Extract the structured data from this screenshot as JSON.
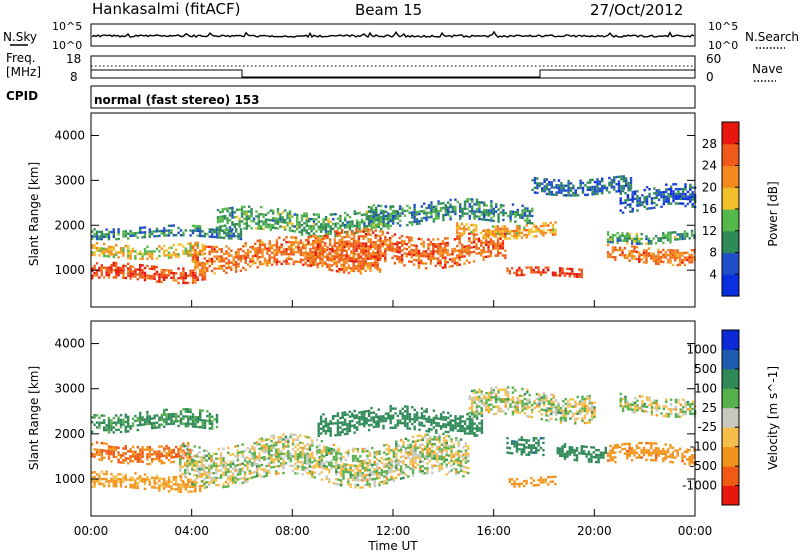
{
  "header": {
    "station": "Hankasalmi (fitACF)",
    "beam": "Beam 15",
    "date": "27/Oct/2012"
  },
  "panels": {
    "nsky": {
      "left_label": "N.Sky",
      "left_ticks": [
        "10^5",
        "10^0"
      ],
      "right_ticks": [
        "10^5",
        "10^0"
      ],
      "right_label": "N.Search"
    },
    "freq": {
      "left_label_1": "Freq.",
      "left_label_2": "[MHz]",
      "left_ticks": [
        "18",
        "8"
      ],
      "right_ticks": [
        "60",
        "0"
      ],
      "right_label": "Nave"
    },
    "cpid": {
      "label": "CPID",
      "text": "normal (fast stereo) 153"
    }
  },
  "x_axis": {
    "label": "Time UT",
    "ticks": [
      "00:00",
      "04:00",
      "08:00",
      "12:00",
      "16:00",
      "20:00",
      "00:00"
    ]
  },
  "colors": {
    "power": [
      "#0a2ee0",
      "#1f4ec8",
      "#2e8b57",
      "#55b84a",
      "#f2c02a",
      "#f28a1e",
      "#ef5a18",
      "#e8170e"
    ],
    "velocity": [
      "#e8170e",
      "#f05a14",
      "#f2931c",
      "#f5bd4a",
      "#c8c8c0",
      "#58b04c",
      "#2f8a58",
      "#1f5cb0",
      "#0c2ad8"
    ],
    "ground_scatter": "#c8c8c0"
  },
  "chart_data": [
    {
      "type": "heatmap",
      "title": "",
      "xlabel": "Time UT",
      "ylabel": "Slant Range [km]",
      "xlim": [
        0,
        24
      ],
      "ylim": [
        180,
        4500
      ],
      "y_ticks": [
        "1000",
        "2000",
        "3000",
        "4000"
      ],
      "colorbar": {
        "label": "Power [dB]",
        "tick_labels": [
          "4",
          "8",
          "12",
          "16",
          "20",
          "24",
          "28"
        ],
        "range": [
          0,
          32
        ]
      },
      "bands": [
        {
          "t_start": 0.0,
          "t_end": 4.5,
          "range_center": 950,
          "range_width": 350,
          "value": 27
        },
        {
          "t_start": 0.0,
          "t_end": 4.5,
          "range_center": 1450,
          "range_width": 300,
          "value": 18
        },
        {
          "t_start": 0.0,
          "t_end": 6.0,
          "range_center": 1850,
          "range_width": 250,
          "value": 9
        },
        {
          "t_start": 4.0,
          "t_end": 11.5,
          "range_center": 1350,
          "range_width": 600,
          "value": 24
        },
        {
          "t_start": 5.0,
          "t_end": 12.0,
          "range_center": 2100,
          "range_width": 500,
          "value": 12
        },
        {
          "t_start": 8.5,
          "t_end": 16.5,
          "range_center": 1500,
          "range_width": 650,
          "value": 25
        },
        {
          "t_start": 11.0,
          "t_end": 17.5,
          "range_center": 2300,
          "range_width": 450,
          "value": 10
        },
        {
          "t_start": 14.5,
          "t_end": 18.5,
          "range_center": 1900,
          "range_width": 300,
          "value": 20
        },
        {
          "t_start": 16.5,
          "t_end": 19.5,
          "range_center": 950,
          "range_width": 200,
          "value": 28
        },
        {
          "t_start": 17.5,
          "t_end": 21.5,
          "range_center": 2900,
          "range_width": 350,
          "value": 7
        },
        {
          "t_start": 20.5,
          "t_end": 24.0,
          "range_center": 1350,
          "range_width": 350,
          "value": 24
        },
        {
          "t_start": 20.5,
          "t_end": 24.0,
          "range_center": 1750,
          "range_width": 250,
          "value": 12
        },
        {
          "t_start": 21.0,
          "t_end": 24.0,
          "range_center": 2600,
          "range_width": 500,
          "value": 6
        }
      ]
    },
    {
      "type": "heatmap",
      "title": "",
      "xlabel": "Time UT",
      "ylabel": "Slant Range [km]",
      "xlim": [
        0,
        24
      ],
      "ylim": [
        180,
        4500
      ],
      "y_ticks": [
        "1000",
        "2000",
        "3000",
        "4000"
      ],
      "colorbar": {
        "label": "Velocity [m s^-1]",
        "tick_labels": [
          "1000",
          "500",
          "100",
          "25",
          "-25",
          "-100",
          "-500",
          "-1000"
        ],
        "range": [
          -1000,
          1000
        ]
      },
      "bands": [
        {
          "t_start": 0.0,
          "t_end": 4.5,
          "range_center": 950,
          "range_width": 350,
          "value": -150
        },
        {
          "t_start": 0.0,
          "t_end": 4.0,
          "range_center": 1600,
          "range_width": 400,
          "value": -500
        },
        {
          "t_start": 0.0,
          "t_end": 5.0,
          "range_center": 2300,
          "range_width": 400,
          "value": 150
        },
        {
          "t_start": 3.5,
          "t_end": 15.0,
          "range_center": 1400,
          "range_width": 900,
          "value": 0
        },
        {
          "t_start": 9.0,
          "t_end": 15.5,
          "range_center": 2300,
          "range_width": 500,
          "value": 300
        },
        {
          "t_start": 15.0,
          "t_end": 20.0,
          "range_center": 2650,
          "range_width": 600,
          "value": 0
        },
        {
          "t_start": 16.5,
          "t_end": 18.0,
          "range_center": 1800,
          "range_width": 400,
          "value": 400
        },
        {
          "t_start": 16.5,
          "t_end": 18.5,
          "range_center": 950,
          "range_width": 200,
          "value": -200
        },
        {
          "t_start": 18.5,
          "t_end": 20.5,
          "range_center": 1600,
          "range_width": 350,
          "value": 300
        },
        {
          "t_start": 20.5,
          "t_end": 24.0,
          "range_center": 1550,
          "range_width": 400,
          "value": -400
        },
        {
          "t_start": 21.0,
          "t_end": 24.0,
          "range_center": 2650,
          "range_width": 400,
          "value": 0
        }
      ]
    }
  ]
}
